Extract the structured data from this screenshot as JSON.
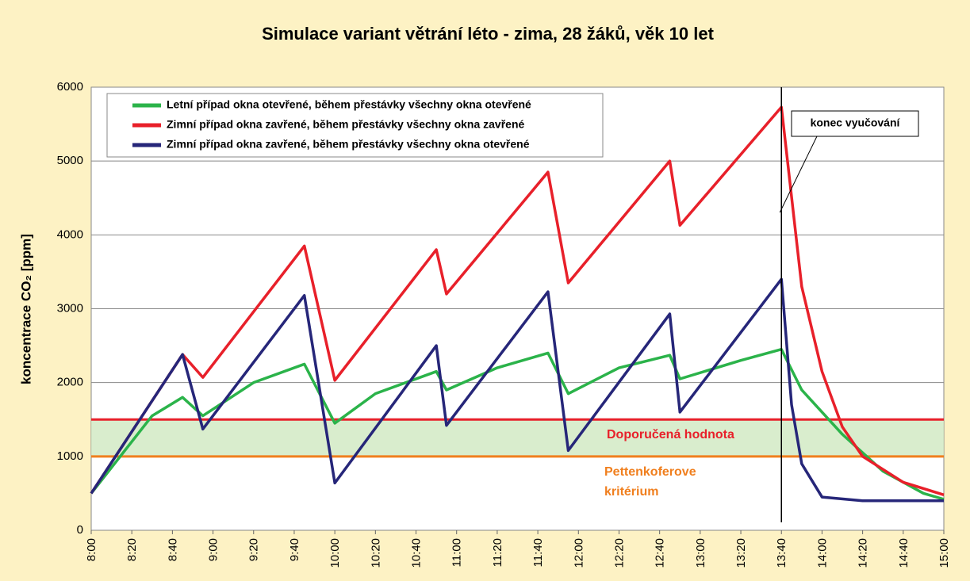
{
  "chart_data": {
    "type": "line",
    "title": "Simulace variant větrání léto - zima, 28 žáků, věk 10 let",
    "y_label": "koncentrace CO₂ [ppm]",
    "xlim": [
      "8:00",
      "15:00"
    ],
    "xticks": [
      "8:00",
      "8:20",
      "8:40",
      "9:00",
      "9:20",
      "9:40",
      "10:00",
      "10:20",
      "10:40",
      "11:00",
      "11:20",
      "11:40",
      "12:00",
      "12:20",
      "12:40",
      "13:00",
      "13:20",
      "13:40",
      "14:00",
      "14:20",
      "14:40",
      "15:00"
    ],
    "ylim": [
      0,
      6000
    ],
    "yticks": [
      0,
      1000,
      2000,
      3000,
      4000,
      5000,
      6000
    ],
    "grid": true,
    "legend": "upper left",
    "series": [
      {
        "name": "Letní případ okna otevřené, během přestávky všechny okna otevřené",
        "color": "#2bb34a",
        "x": [
          "8:00",
          "8:20",
          "8:30",
          "8:45",
          "8:55",
          "9:20",
          "9:45",
          "10:00",
          "10:20",
          "10:50",
          "10:55",
          "11:20",
          "11:45",
          "11:55",
          "12:20",
          "12:45",
          "12:50",
          "13:20",
          "13:40",
          "13:50",
          "14:10",
          "14:30",
          "14:50",
          "15:00"
        ],
        "values": [
          500,
          1200,
          1550,
          1800,
          1550,
          2000,
          2250,
          1450,
          1850,
          2150,
          1900,
          2200,
          2400,
          1850,
          2200,
          2370,
          2050,
          2300,
          2450,
          1900,
          1300,
          800,
          500,
          420
        ]
      },
      {
        "name": "Zimní případ okna zavřené, během přestávky všechny okna zavřené",
        "color": "#e8202a",
        "x": [
          "8:00",
          "8:45",
          "8:55",
          "9:45",
          "10:00",
          "10:50",
          "10:55",
          "11:45",
          "11:55",
          "12:45",
          "12:50",
          "13:40",
          "13:50",
          "14:00",
          "14:10",
          "14:20",
          "14:40",
          "15:00"
        ],
        "values": [
          500,
          2380,
          2070,
          3850,
          2030,
          3800,
          3200,
          4850,
          3350,
          5000,
          4130,
          5730,
          3300,
          2150,
          1400,
          1000,
          650,
          480
        ]
      },
      {
        "name": "Zimní případ okna zavřené, během přestávky všechny okna otevřené",
        "color": "#262679",
        "x": [
          "8:00",
          "8:45",
          "8:55",
          "9:45",
          "10:00",
          "10:50",
          "10:55",
          "11:45",
          "11:55",
          "12:45",
          "12:50",
          "13:40",
          "13:45",
          "13:50",
          "14:00",
          "14:20",
          "15:00"
        ],
        "values": [
          500,
          2380,
          1370,
          3180,
          640,
          2500,
          1420,
          3230,
          1080,
          2930,
          1600,
          3400,
          1700,
          900,
          450,
          400,
          400
        ]
      }
    ],
    "reference_lines": [
      {
        "label": "Doporučená hodnota",
        "value": 1500,
        "color": "#e8202a"
      },
      {
        "label": "Pettenkoferove kritérium",
        "value": 1000,
        "color": "#f07f1e"
      }
    ],
    "annotation": {
      "text": "konec vyučování",
      "x": "13:40"
    }
  }
}
